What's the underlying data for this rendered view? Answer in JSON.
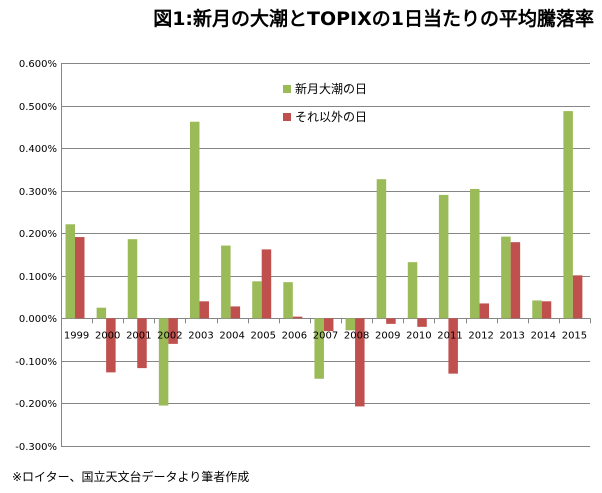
{
  "title": "図1:新月の大潮とTOPIXの1日当たりの平均騰落率",
  "source": "※ロイター、国立天文台データより筆者作成",
  "chart_data": {
    "type": "bar",
    "title": "図1:新月の大潮とTOPIXの1日当たりの平均騰落率",
    "categories": [
      "1999",
      "2000",
      "2001",
      "2002",
      "2003",
      "2004",
      "2005",
      "2006",
      "2007",
      "2008",
      "2009",
      "2010",
      "2011",
      "2012",
      "2013",
      "2014",
      "2015"
    ],
    "series": [
      {
        "name": "新月大潮の日",
        "color": "#9bbb59",
        "values": [
          0.221,
          0.025,
          0.186,
          -0.205,
          0.462,
          0.171,
          0.087,
          0.085,
          -0.142,
          -0.028,
          0.327,
          0.132,
          0.29,
          0.304,
          0.192,
          0.042,
          0.487
        ]
      },
      {
        "name": "それ以外の日",
        "color": "#c0504d",
        "values": [
          0.191,
          -0.127,
          -0.117,
          -0.06,
          0.04,
          0.028,
          0.162,
          0.004,
          -0.03,
          -0.207,
          -0.013,
          -0.02,
          -0.13,
          0.035,
          0.179,
          0.04,
          0.101
        ]
      }
    ],
    "yticks": [
      "0.600%",
      "0.500%",
      "0.400%",
      "0.300%",
      "0.200%",
      "0.100%",
      "0.000%",
      "-0.100%",
      "-0.200%",
      "-0.300%"
    ],
    "ylim": [
      -0.3,
      0.6
    ],
    "y_unit": "%",
    "legend_position": "top-center",
    "grid": true
  }
}
